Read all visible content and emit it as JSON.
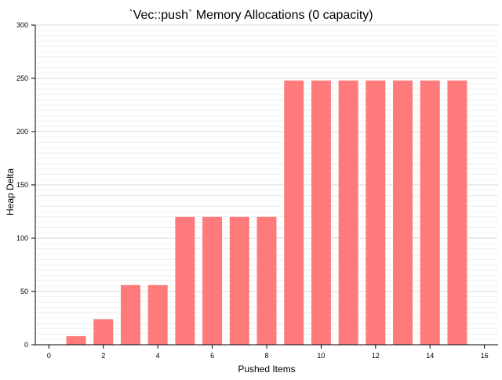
{
  "chart_data": {
    "type": "bar",
    "title": "`Vec::push` Memory Allocations (0 capacity)",
    "xlabel": "Pushed Items",
    "ylabel": "Heap Delta",
    "xlim": [
      -0.5,
      16.5
    ],
    "ylim": [
      0,
      300
    ],
    "x_ticks": [
      0,
      2,
      4,
      6,
      8,
      10,
      12,
      14,
      16
    ],
    "y_ticks": [
      0,
      50,
      100,
      150,
      200,
      250,
      300
    ],
    "grid": true,
    "bar_color": "#ff7b7b",
    "x": [
      1,
      2,
      3,
      4,
      5,
      6,
      7,
      8,
      9,
      10,
      11,
      12,
      13,
      14,
      15
    ],
    "values": [
      8,
      24,
      56,
      56,
      120,
      120,
      120,
      120,
      248,
      248,
      248,
      248,
      248,
      248,
      248
    ]
  }
}
